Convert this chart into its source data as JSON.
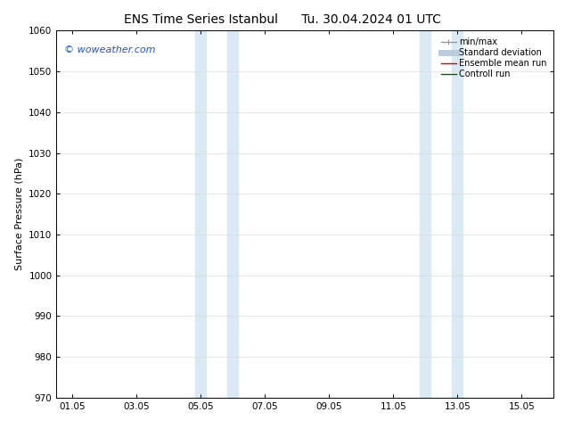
{
  "title_left": "ENS Time Series Istanbul",
  "title_right": "Tu. 30.04.2024 01 UTC",
  "ylabel": "Surface Pressure (hPa)",
  "ylim": [
    970,
    1060
  ],
  "yticks": [
    970,
    980,
    990,
    1000,
    1010,
    1020,
    1030,
    1040,
    1050,
    1060
  ],
  "xtick_labels": [
    "01.05",
    "03.05",
    "05.05",
    "07.05",
    "09.05",
    "11.05",
    "13.05",
    "15.05"
  ],
  "xtick_positions": [
    0,
    2,
    4,
    6,
    8,
    10,
    12,
    14
  ],
  "xmin": -0.5,
  "xmax": 15.0,
  "shaded_bands": [
    {
      "x_start": 3.83,
      "x_end": 4.17
    },
    {
      "x_start": 4.83,
      "x_end": 5.17
    },
    {
      "x_start": 10.83,
      "x_end": 11.17
    },
    {
      "x_start": 11.83,
      "x_end": 12.17
    }
  ],
  "shade_color": "#daeaf5",
  "watermark": "© woweather.com",
  "watermark_color": "#2255bb",
  "background_color": "#ffffff",
  "plot_bg_color": "#ffffff",
  "grid_color": "#dddddd",
  "spine_color": "#000000",
  "legend_items": [
    {
      "label": "min/max",
      "color": "#999999",
      "lw": 1.0
    },
    {
      "label": "Standard deviation",
      "color": "#bbccdd",
      "lw": 5
    },
    {
      "label": "Ensemble mean run",
      "color": "#cc0000",
      "lw": 1.0
    },
    {
      "label": "Controll run",
      "color": "#006600",
      "lw": 1.0
    }
  ],
  "title_fontsize": 10,
  "ylabel_fontsize": 8,
  "tick_fontsize": 7.5,
  "legend_fontsize": 7,
  "watermark_fontsize": 8
}
